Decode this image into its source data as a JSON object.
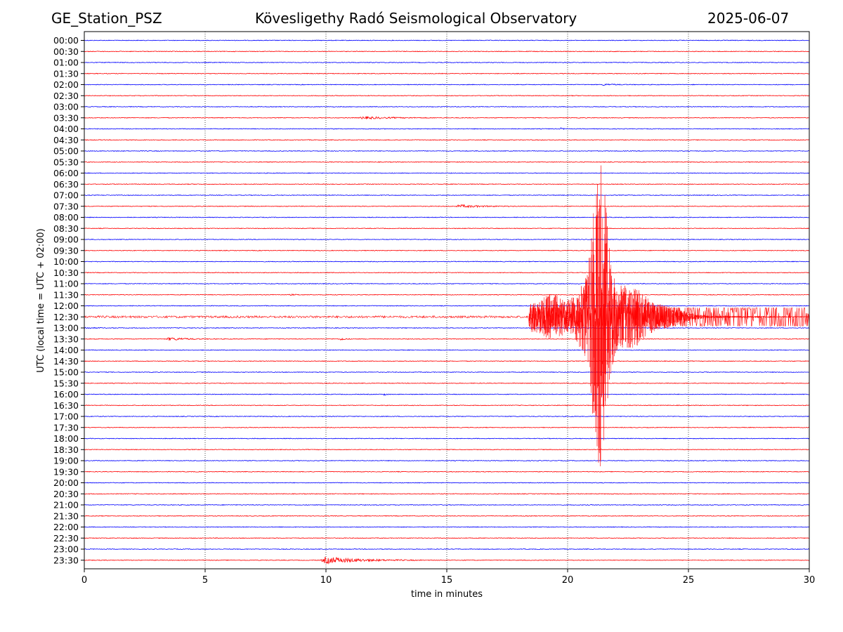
{
  "header": {
    "station": "GE_Station_PSZ",
    "observatory": "Kövesligethy Radó Seismological Observatory",
    "date": "2025-06-07"
  },
  "chart_data": {
    "type": "line",
    "title": "Kövesligethy Radó Seismological Observatory",
    "xlabel": "time in minutes",
    "ylabel": "UTC (local time = UTC + 02:00)",
    "xlim": [
      0,
      30
    ],
    "x_ticks": [
      "0",
      "5",
      "10",
      "15",
      "20",
      "25",
      "30"
    ],
    "grid": "vertical dotted lines at x = 5, 10, 15, 20, 25",
    "trace_colors": [
      "#0000ff",
      "#ff0000"
    ],
    "rows": [
      "00:00",
      "00:30",
      "01:00",
      "01:30",
      "02:00",
      "02:30",
      "03:00",
      "03:30",
      "04:00",
      "04:30",
      "05:00",
      "05:30",
      "06:00",
      "06:30",
      "07:00",
      "07:30",
      "08:00",
      "08:30",
      "09:00",
      "09:30",
      "10:00",
      "10:30",
      "11:00",
      "11:30",
      "12:00",
      "12:30",
      "13:00",
      "13:30",
      "14:00",
      "14:30",
      "15:00",
      "15:30",
      "16:00",
      "16:30",
      "17:00",
      "17:30",
      "18:00",
      "18:30",
      "19:00",
      "19:30",
      "20:00",
      "20:30",
      "21:00",
      "21:30",
      "22:00",
      "22:30",
      "23:00",
      "23:30"
    ],
    "events": [
      {
        "row": "02:00",
        "start_min": 21.4,
        "end_min": 22.9,
        "amp": 0.15
      },
      {
        "row": "03:30",
        "start_min": 11.4,
        "end_min": 14.5,
        "amp": 0.25
      },
      {
        "row": "04:00",
        "start_min": 19.7,
        "end_min": 20.0,
        "amp": 0.2
      },
      {
        "row": "07:30",
        "start_min": 15.4,
        "end_min": 18.0,
        "amp": 0.3
      },
      {
        "row": "11:30",
        "start_min": 8.5,
        "end_min": 9.3,
        "amp": 0.1
      },
      {
        "row": "12:30",
        "start_min": 18.4,
        "end_min": 30.0,
        "amp": 5.5,
        "major": true
      },
      {
        "row": "13:00",
        "start_min": 0.0,
        "end_min": 1.0,
        "amp": 0.12
      },
      {
        "row": "13:30",
        "start_min": 3.4,
        "end_min": 5.5,
        "amp": 0.3
      },
      {
        "row": "13:30",
        "start_min": 10.6,
        "end_min": 11.0,
        "amp": 0.35
      },
      {
        "row": "16:00",
        "start_min": 12.4,
        "end_min": 12.6,
        "amp": 0.35
      },
      {
        "row": "23:30",
        "start_min": 9.8,
        "end_min": 14.0,
        "amp": 0.7
      }
    ]
  }
}
